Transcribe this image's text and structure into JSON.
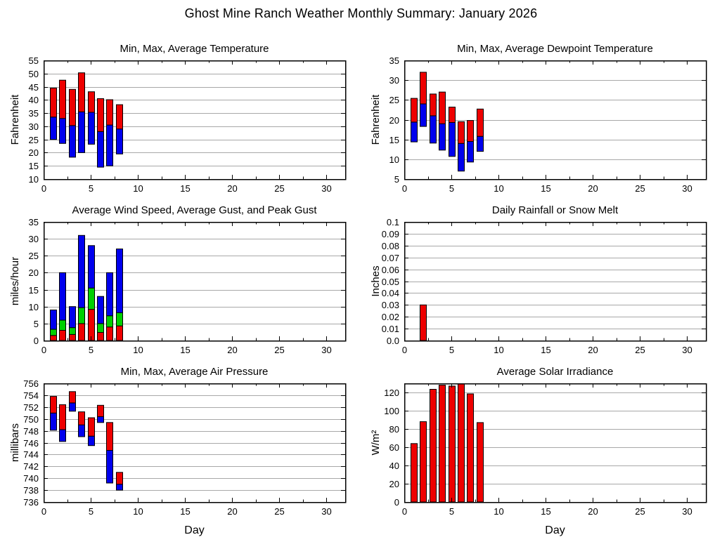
{
  "page_title": "Ghost Mine Ranch Weather Monthly Summary: January 2026",
  "colors": {
    "red": "#ee0000",
    "green": "#00d000",
    "blue": "#0000ee",
    "grid": "#a8a8a8",
    "frame": "#000000",
    "text": "#000000",
    "background": "#ffffff"
  },
  "x_axis": {
    "label": "Day",
    "lim": [
      0,
      32
    ],
    "major_ticks": [
      0,
      5,
      10,
      15,
      20,
      25,
      30
    ],
    "major_labels": [
      "0",
      "5",
      "10",
      "15",
      "20",
      "25",
      "30"
    ],
    "minor_ticks": [
      2.5,
      7.5,
      12.5,
      17.5,
      22.5,
      27.5
    ]
  },
  "chart_data": [
    {
      "id": "temperature",
      "type": "bar",
      "kind": "min_avg_max",
      "title": "Min, Max, Average Temperature",
      "ylabel": "Fahrenheit",
      "xlabel": "",
      "show_xlabel": false,
      "grid": true,
      "legend": "none",
      "ylim": [
        10,
        55
      ],
      "yticks": [
        10,
        15,
        20,
        25,
        30,
        35,
        40,
        45,
        50,
        55
      ],
      "ytick_labels": [
        "10",
        "15",
        "20",
        "25",
        "30",
        "35",
        "40",
        "45",
        "50",
        "55"
      ],
      "days": [
        1,
        2,
        3,
        4,
        5,
        6,
        7,
        8
      ],
      "series": [
        {
          "name": "Min",
          "color": "blue",
          "values": [
            25,
            23.5,
            18.3,
            20,
            23.2,
            14.5,
            15,
            19.5
          ]
        },
        {
          "name": "Average",
          "color": "boundary",
          "values": [
            33.5,
            33,
            30.3,
            35.5,
            35.3,
            28,
            30.5,
            29
          ]
        },
        {
          "name": "Max",
          "color": "red",
          "values": [
            44.5,
            47.5,
            44,
            50.3,
            43.1,
            40.5,
            40.1,
            38.2
          ]
        }
      ]
    },
    {
      "id": "dewpoint",
      "type": "bar",
      "kind": "min_avg_max",
      "title": "Min, Max, Average Dewpoint Temperature",
      "ylabel": "Fahrenheit",
      "xlabel": "",
      "show_xlabel": false,
      "grid": true,
      "legend": "none",
      "ylim": [
        5,
        35
      ],
      "yticks": [
        5,
        10,
        15,
        20,
        25,
        30,
        35
      ],
      "ytick_labels": [
        "5",
        "10",
        "15",
        "20",
        "25",
        "30",
        "35"
      ],
      "days": [
        1,
        2,
        3,
        4,
        5,
        6,
        7,
        8
      ],
      "series": [
        {
          "name": "Min",
          "color": "blue",
          "values": [
            14.4,
            18.3,
            14.1,
            12.3,
            10.7,
            7,
            9.3,
            12
          ]
        },
        {
          "name": "Average",
          "color": "boundary",
          "values": [
            19.4,
            24,
            21,
            19,
            19.3,
            14,
            14.5,
            15.8
          ]
        },
        {
          "name": "Max",
          "color": "red",
          "values": [
            25.4,
            32,
            26.5,
            27,
            23.2,
            19.5,
            19.8,
            22.7
          ]
        }
      ]
    },
    {
      "id": "wind",
      "type": "bar",
      "kind": "stacked",
      "title": "Average Wind Speed, Average Gust, and Peak Gust",
      "ylabel": "miles/hour",
      "xlabel": "",
      "show_xlabel": false,
      "grid": true,
      "legend": "none",
      "ylim": [
        0,
        35
      ],
      "yticks": [
        0,
        5,
        10,
        15,
        20,
        25,
        30,
        35
      ],
      "ytick_labels": [
        "0",
        "5",
        "10",
        "15",
        "20",
        "25",
        "30",
        "35"
      ],
      "days": [
        1,
        2,
        3,
        4,
        5,
        6,
        7,
        8
      ],
      "series": [
        {
          "name": "Average Wind Speed",
          "color": "red",
          "values": [
            1.5,
            3,
            1.8,
            5,
            9.2,
            2.4,
            4,
            4.3
          ]
        },
        {
          "name": "Average Gust",
          "color": "green",
          "values": [
            3.3,
            6,
            3.8,
            9.7,
            15.5,
            5,
            7.3,
            8.2
          ]
        },
        {
          "name": "Peak Gust",
          "color": "blue",
          "values": [
            9,
            20,
            10,
            31,
            28,
            13,
            20,
            27
          ]
        }
      ]
    },
    {
      "id": "rainfall",
      "type": "bar",
      "kind": "single",
      "title": "Daily Rainfall or Snow Melt",
      "ylabel": "Inches",
      "xlabel": "",
      "show_xlabel": false,
      "grid": true,
      "legend": "none",
      "ylim": [
        0,
        0.1
      ],
      "yticks": [
        0,
        0.01,
        0.02,
        0.03,
        0.04,
        0.05,
        0.06,
        0.07,
        0.08,
        0.09,
        0.1
      ],
      "ytick_labels": [
        "0.0",
        "0.01",
        "0.02",
        "0.03",
        "0.04",
        "0.05",
        "0.06",
        "0.07",
        "0.08",
        "0.09",
        "0.1"
      ],
      "days": [
        2
      ],
      "series": [
        {
          "name": "Rainfall",
          "color": "red",
          "values": [
            0.03
          ]
        }
      ]
    },
    {
      "id": "pressure",
      "type": "bar",
      "kind": "min_avg_max",
      "title": "Min, Max, Average Air Pressure",
      "ylabel": "millibars",
      "xlabel": "Day",
      "show_xlabel": true,
      "grid": true,
      "legend": "none",
      "ylim": [
        736,
        756
      ],
      "yticks": [
        736,
        738,
        740,
        742,
        744,
        746,
        748,
        750,
        752,
        754,
        756
      ],
      "ytick_labels": [
        "736",
        "738",
        "740",
        "742",
        "744",
        "746",
        "748",
        "750",
        "752",
        "754",
        "756"
      ],
      "days": [
        1,
        2,
        3,
        4,
        5,
        6,
        7,
        8
      ],
      "series": [
        {
          "name": "Min",
          "color": "blue",
          "values": [
            748.1,
            746.2,
            751.3,
            747,
            745.5,
            749.4,
            739.2,
            738
          ]
        },
        {
          "name": "Average",
          "color": "boundary",
          "values": [
            751,
            748.2,
            752.7,
            749,
            747.1,
            750.4,
            744.7,
            739
          ]
        },
        {
          "name": "Max",
          "color": "red",
          "values": [
            753.8,
            752.4,
            754.6,
            751.2,
            750.2,
            752.3,
            749.4,
            741
          ]
        }
      ]
    },
    {
      "id": "solar",
      "type": "bar",
      "kind": "single",
      "title": "Average Solar Irradiance",
      "ylabel": "W/m²",
      "xlabel": "Day",
      "show_xlabel": true,
      "grid": true,
      "legend": "none",
      "ylim": [
        0,
        130
      ],
      "yticks": [
        0,
        20,
        40,
        60,
        80,
        100,
        120
      ],
      "ytick_labels": [
        "0",
        "20",
        "40",
        "60",
        "80",
        "100",
        "120"
      ],
      "days": [
        1,
        2,
        3,
        4,
        5,
        6,
        7,
        8
      ],
      "series": [
        {
          "name": "Average Solar Irradiance",
          "color": "red",
          "values": [
            64,
            88,
            123.5,
            128,
            127,
            129.5,
            118.5,
            87
          ]
        }
      ]
    }
  ]
}
